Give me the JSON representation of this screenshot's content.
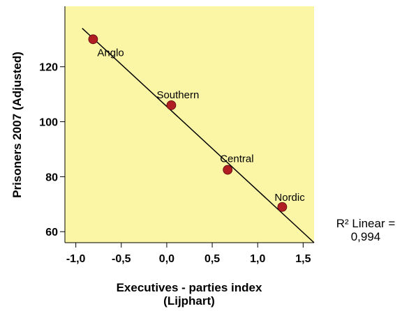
{
  "chart_data": {
    "type": "scatter",
    "title": "",
    "xlabel_lines": [
      "Executives - parties index",
      "(Lijphart)"
    ],
    "ylabel": "Prisoners 2007 (Adjusted)",
    "xlim": [
      -1.12,
      1.62
    ],
    "ylim": [
      56,
      142
    ],
    "x_ticks": [
      -1.0,
      -0.5,
      0.0,
      0.5,
      1.0,
      1.5
    ],
    "x_tick_labels": [
      "-1,0",
      "-0,5",
      "0,0",
      "0,5",
      "1,0",
      "1,5"
    ],
    "y_ticks": [
      60,
      80,
      100,
      120
    ],
    "y_tick_labels": [
      "60",
      "80",
      "100",
      "120"
    ],
    "grid": false,
    "background_color": "#FBF6A6",
    "point_color": "#B01E23",
    "points": [
      {
        "label": "Anglo",
        "x": -0.81,
        "y": 130
      },
      {
        "label": "Southern",
        "x": 0.05,
        "y": 106
      },
      {
        "label": "Central",
        "x": 0.67,
        "y": 82.5
      },
      {
        "label": "Nordic",
        "x": 1.27,
        "y": 69
      }
    ],
    "fit_line": {
      "type": "linear",
      "x": [
        -0.93,
        1.62
      ],
      "y": [
        134,
        56
      ]
    },
    "annotation_lines": [
      "R² Linear =",
      "0,994"
    ]
  }
}
